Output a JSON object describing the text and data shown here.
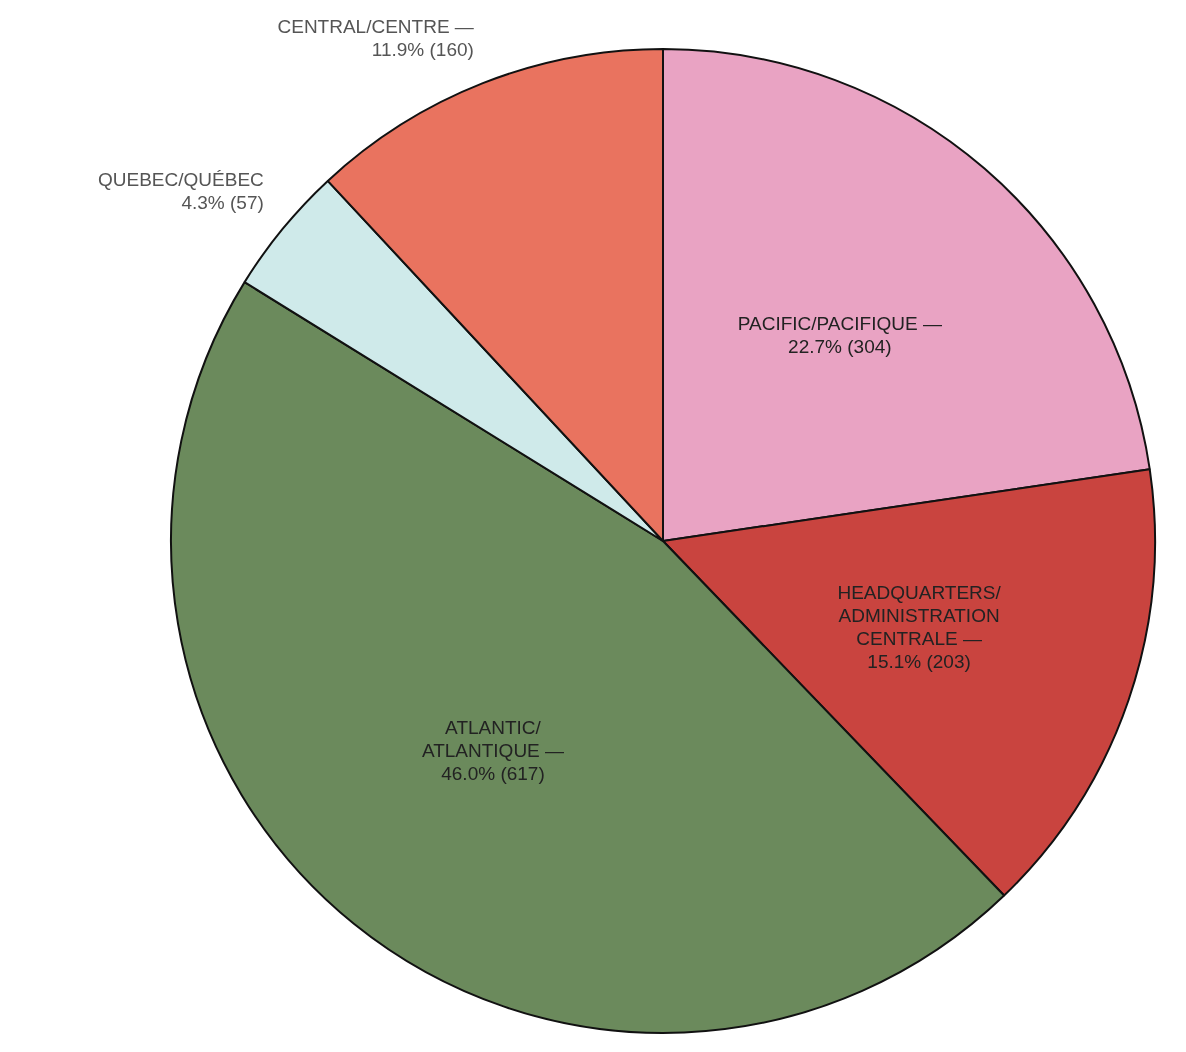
{
  "chart_data": {
    "type": "pie",
    "categories": [
      "PACIFIC/PACIFIQUE —",
      "HEADQUARTERS/ ADMINISTRATION CENTRALE —",
      "ATLANTIC/ ATLANTIQUE —",
      "QUEBEC/QUÉBEC",
      "CENTRAL/CENTRE —"
    ],
    "values": [
      304,
      203,
      617,
      57,
      160
    ],
    "value_labels": [
      "22.7% (304)",
      "15.1% (203)",
      "46.0% (617)",
      "4.3% (57)",
      "11.9% (160)"
    ],
    "colors": [
      "#e9a3c3",
      "#c9443f",
      "#6b8a5c",
      "#cfeaea",
      "#e9735f"
    ]
  }
}
